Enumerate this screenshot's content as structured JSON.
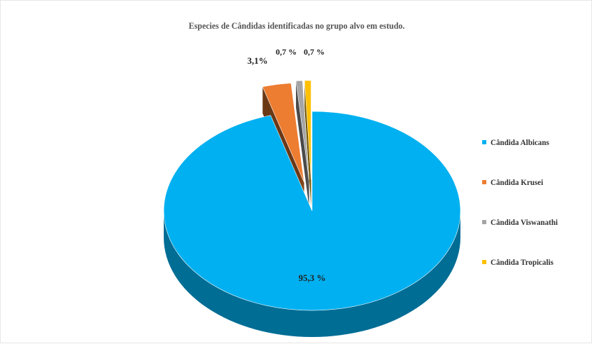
{
  "chart_data": {
    "type": "pie",
    "title": "Especies de Cândidas identificadas no grupo alvo em estudo.",
    "categories": [
      "Cândida Albicans",
      "Cândida Krusei",
      "Cândida Viswanathi",
      "Cândida Tropicalis"
    ],
    "values": [
      95.3,
      3.1,
      0.7,
      0.7
    ],
    "data_labels": [
      "95,3 %",
      "3,1%",
      "0,7 %",
      "0,7 %"
    ],
    "colors": [
      "#00b0f0",
      "#ed7d31",
      "#a5a5a5",
      "#ffc000"
    ],
    "legend_position": "right",
    "style": "3d-exploded"
  }
}
